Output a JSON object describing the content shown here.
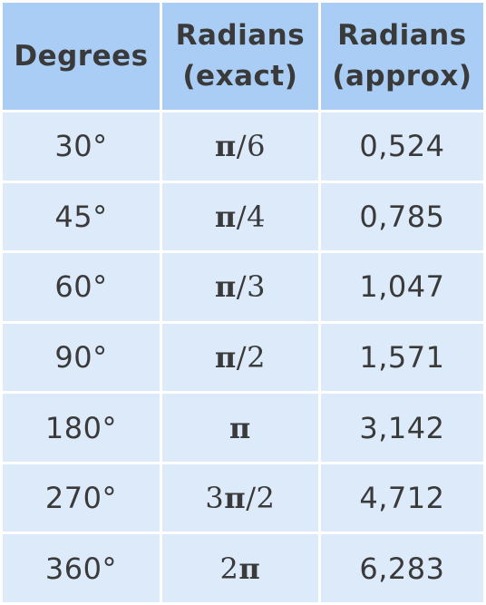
{
  "table": {
    "headers": [
      {
        "lines": [
          "Degrees"
        ]
      },
      {
        "lines": [
          "Radians",
          "(exact)"
        ]
      },
      {
        "lines": [
          "Radians",
          "(approx)"
        ]
      }
    ],
    "rows": [
      {
        "degrees": "30°",
        "exact_coef": "",
        "exact_symbol": "π",
        "exact_rest": "/6",
        "approx": "0,524"
      },
      {
        "degrees": "45°",
        "exact_coef": "",
        "exact_symbol": "π",
        "exact_rest": "/4",
        "approx": "0,785"
      },
      {
        "degrees": "60°",
        "exact_coef": "",
        "exact_symbol": "π",
        "exact_rest": "/3",
        "approx": "1,047"
      },
      {
        "degrees": "90°",
        "exact_coef": "",
        "exact_symbol": "π",
        "exact_rest": "/2",
        "approx": "1,571"
      },
      {
        "degrees": "180°",
        "exact_coef": "",
        "exact_symbol": "π",
        "exact_rest": "",
        "approx": "3,142"
      },
      {
        "degrees": "270°",
        "exact_coef": "3",
        "exact_symbol": "π",
        "exact_rest": "/2",
        "approx": "4,712"
      },
      {
        "degrees": "360°",
        "exact_coef": "2",
        "exact_symbol": "π",
        "exact_rest": "",
        "approx": "6,283"
      }
    ]
  }
}
